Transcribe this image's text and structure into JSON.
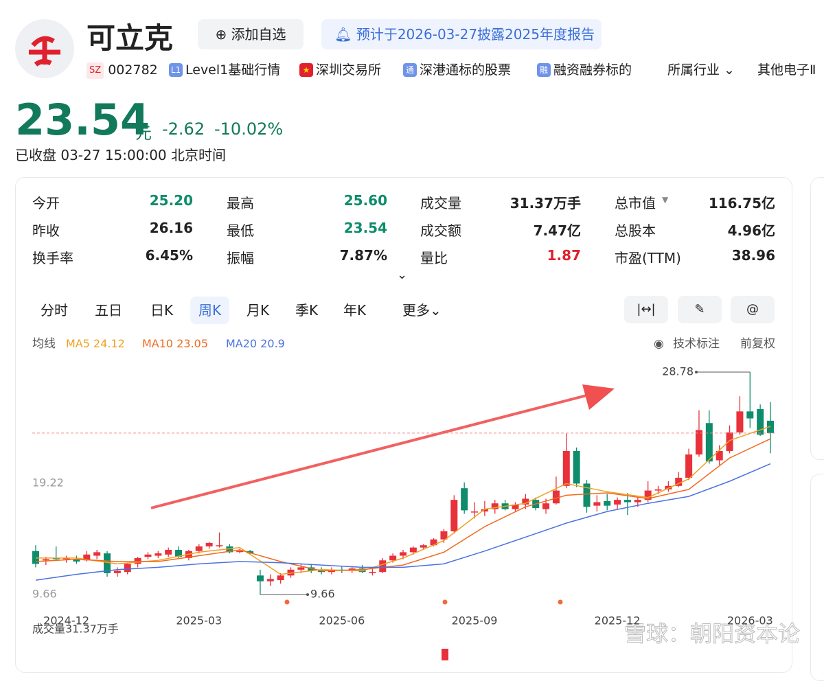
{
  "header": {
    "name": "可立克",
    "add_button": "添加自选",
    "notice": "预计于2026-03-27披露2025年度报告",
    "market": "SZ",
    "code": "002782",
    "tags": [
      {
        "badge": "L1",
        "text": "Level1基础行情"
      },
      {
        "text": "深圳交易所"
      },
      {
        "badge": "通",
        "text": "深港通标的股票"
      },
      {
        "badge": "融",
        "text": "融资融券标的"
      }
    ],
    "industry_label": "所属行业",
    "industry": "其他电子Ⅱ"
  },
  "quote": {
    "price": "23.54",
    "unit": "元",
    "change": "-2.62",
    "change_pct": "-10.02%",
    "status": "已收盘",
    "time": "03-27 15:00:00",
    "timezone": "北京时间"
  },
  "stats": [
    {
      "label": "今开",
      "value": "25.20",
      "color": "#0e8c6b"
    },
    {
      "label": "最高",
      "value": "25.60",
      "color": "#0e8c6b"
    },
    {
      "label": "成交量",
      "value": "31.37万手"
    },
    {
      "label": "总市值",
      "value": "116.75亿"
    },
    {
      "label": "昨收",
      "value": "26.16"
    },
    {
      "label": "最低",
      "value": "23.54",
      "color": "#0e8c6b"
    },
    {
      "label": "成交额",
      "value": "7.47亿"
    },
    {
      "label": "总股本",
      "value": "4.96亿"
    },
    {
      "label": "换手率",
      "value": "6.45%"
    },
    {
      "label": "振幅",
      "value": "7.87%"
    },
    {
      "label": "量比",
      "value": "1.87",
      "color": "#e0202e"
    },
    {
      "label": "市盈(TTM)",
      "value": "38.96"
    }
  ],
  "tabs": [
    "分时",
    "五日",
    "日K",
    "周K",
    "月K",
    "季K",
    "年K",
    "更多"
  ],
  "chart_data": {
    "type": "candlestick",
    "indicator_label": "均线",
    "tech_label": "技术标注",
    "adjust_label": "前复权",
    "volume_label": "成交量31.37万手",
    "up_color": "#e8313a",
    "down_color": "#0e8c6b",
    "price_line": true,
    "categories": [
      null,
      null,
      null,
      "2024-12",
      null,
      null,
      null,
      null,
      null,
      null,
      null,
      null,
      null,
      null,
      null,
      null,
      "2025-03",
      null,
      null,
      null,
      null,
      null,
      null,
      null,
      null,
      null,
      null,
      null,
      null,
      null,
      "2025-06",
      null,
      null,
      null,
      null,
      null,
      null,
      null,
      null,
      null,
      null,
      null,
      null,
      "2025-09",
      null,
      null,
      null,
      null,
      null,
      null,
      null,
      null,
      null,
      null,
      null,
      null,
      null,
      "2025-12",
      null,
      null,
      null,
      null,
      null,
      null,
      null,
      null,
      null,
      null,
      null,
      null,
      "2026-03",
      null,
      null
    ],
    "candles": [
      [
        13.4,
        13.9,
        12.0,
        12.3
      ],
      [
        12.6,
        12.9,
        12.2,
        12.7
      ],
      [
        12.8,
        13.8,
        12.6,
        12.7
      ],
      [
        12.7,
        13.0,
        12.4,
        12.8
      ],
      [
        12.7,
        13.0,
        12.3,
        12.5
      ],
      [
        12.6,
        13.4,
        12.5,
        13.1
      ],
      [
        13.0,
        13.5,
        12.7,
        13.3
      ],
      [
        13.2,
        13.4,
        11.2,
        11.5
      ],
      [
        11.5,
        12.0,
        11.2,
        11.7
      ],
      [
        11.6,
        12.4,
        11.4,
        12.3
      ],
      [
        12.3,
        12.9,
        12.0,
        12.8
      ],
      [
        12.9,
        13.3,
        12.7,
        13.1
      ],
      [
        13.0,
        13.4,
        12.8,
        13.2
      ],
      [
        13.1,
        13.7,
        12.9,
        13.5
      ],
      [
        13.5,
        13.8,
        12.8,
        12.9
      ],
      [
        12.8,
        13.5,
        12.6,
        13.4
      ],
      [
        13.4,
        14.0,
        13.2,
        13.8
      ],
      [
        13.8,
        14.2,
        13.6,
        14.1
      ],
      [
        13.9,
        15.0,
        13.7,
        13.9
      ],
      [
        13.8,
        14.0,
        13.2,
        13.3
      ],
      [
        13.4,
        13.6,
        13.2,
        13.4
      ],
      [
        13.4,
        13.5,
        13.1,
        13.2
      ],
      [
        11.3,
        11.8,
        9.66,
        10.8
      ],
      [
        10.8,
        11.4,
        10.4,
        11.0
      ],
      [
        10.9,
        11.5,
        10.6,
        11.3
      ],
      [
        11.3,
        12.0,
        11.1,
        11.8
      ],
      [
        11.8,
        12.3,
        11.5,
        12.0
      ],
      [
        12.0,
        12.3,
        11.5,
        11.7
      ],
      [
        11.7,
        12.0,
        11.4,
        11.6
      ],
      [
        11.6,
        12.0,
        11.4,
        11.8
      ],
      [
        11.8,
        12.1,
        11.5,
        11.7
      ],
      [
        11.7,
        12.0,
        11.5,
        11.9
      ],
      [
        11.9,
        12.2,
        11.5,
        11.6
      ],
      [
        11.5,
        11.9,
        11.3,
        11.6
      ],
      [
        11.6,
        12.8,
        11.5,
        12.6
      ],
      [
        12.6,
        13.2,
        12.4,
        13.0
      ],
      [
        13.0,
        13.5,
        12.7,
        13.3
      ],
      [
        13.3,
        13.8,
        13.1,
        13.7
      ],
      [
        13.7,
        14.0,
        13.5,
        13.9
      ],
      [
        13.9,
        14.5,
        13.8,
        14.4
      ],
      [
        14.4,
        15.3,
        14.1,
        15.1
      ],
      [
        15.1,
        18.2,
        14.9,
        17.8
      ],
      [
        18.8,
        19.3,
        16.6,
        16.9
      ],
      [
        16.8,
        17.6,
        16.2,
        16.8
      ],
      [
        16.8,
        17.7,
        16.4,
        17.0
      ],
      [
        17.0,
        17.8,
        16.6,
        17.5
      ],
      [
        17.5,
        17.8,
        16.9,
        17.0
      ],
      [
        17.0,
        17.6,
        16.8,
        17.4
      ],
      [
        17.4,
        18.3,
        17.0,
        17.9
      ],
      [
        17.8,
        18.0,
        16.9,
        17.1
      ],
      [
        17.0,
        17.9,
        16.6,
        17.5
      ],
      [
        17.5,
        19.8,
        17.4,
        18.6
      ],
      [
        19.0,
        23.5,
        18.8,
        22.0
      ],
      [
        22.0,
        22.3,
        18.9,
        19.2
      ],
      [
        19.2,
        19.5,
        16.7,
        17.2
      ],
      [
        17.3,
        18.2,
        16.8,
        17.6
      ],
      [
        17.7,
        18.3,
        16.9,
        17.3
      ],
      [
        17.4,
        18.0,
        17.0,
        17.8
      ],
      [
        17.8,
        18.4,
        16.5,
        17.6
      ],
      [
        17.6,
        18.0,
        17.2,
        17.8
      ],
      [
        17.8,
        19.4,
        17.6,
        18.6
      ],
      [
        18.6,
        19.0,
        18.3,
        18.7
      ],
      [
        18.7,
        19.4,
        18.5,
        19.0
      ],
      [
        19.0,
        20.2,
        18.9,
        19.7
      ],
      [
        19.7,
        22.2,
        19.5,
        21.7
      ],
      [
        21.7,
        25.5,
        21.5,
        23.8
      ],
      [
        24.4,
        25.5,
        20.9,
        21.1
      ],
      [
        21.2,
        22.5,
        20.8,
        22.0
      ],
      [
        22.0,
        24.2,
        21.8,
        23.6
      ],
      [
        23.6,
        26.7,
        23.4,
        25.4
      ],
      [
        25.4,
        28.78,
        24.0,
        24.8
      ],
      [
        25.6,
        26.0,
        23.3,
        23.4
      ],
      [
        24.6,
        26.2,
        21.8,
        23.54
      ]
    ],
    "series": [
      {
        "name": "MA5",
        "color": "#f0a020",
        "x": [
          0,
          4,
          8,
          12,
          16,
          20,
          24,
          28,
          32,
          36,
          40,
          44,
          48,
          52,
          56,
          60,
          64,
          68,
          72
        ],
        "values": [
          12.8,
          12.8,
          12.3,
          12.6,
          13.3,
          13.7,
          11.4,
          11.8,
          11.7,
          12.8,
          14.3,
          17.0,
          17.5,
          19.2,
          18.5,
          18.0,
          19.6,
          22.9,
          24.12
        ]
      },
      {
        "name": "MA10",
        "color": "#f06a1f",
        "x": [
          0,
          4,
          8,
          12,
          16,
          20,
          24,
          28,
          32,
          36,
          40,
          44,
          48,
          52,
          56,
          60,
          64,
          68,
          72
        ],
        "values": [
          12.5,
          12.7,
          12.5,
          12.5,
          13.0,
          13.5,
          12.5,
          11.7,
          11.8,
          12.2,
          13.3,
          15.5,
          17.2,
          18.2,
          18.4,
          17.9,
          18.7,
          21.4,
          23.05
        ]
      },
      {
        "name": "MA20",
        "color": "#4a72e0",
        "x": [
          0,
          4,
          8,
          12,
          16,
          20,
          24,
          28,
          32,
          36,
          40,
          44,
          48,
          52,
          56,
          60,
          64,
          68,
          72
        ],
        "values": [
          10.9,
          11.4,
          11.8,
          12.0,
          12.3,
          12.5,
          12.4,
          12.2,
          12.0,
          12.0,
          12.3,
          13.4,
          14.6,
          15.8,
          16.8,
          17.5,
          18.1,
          19.4,
          20.9
        ]
      }
    ],
    "ylim": [
      8.84,
      29.49
    ],
    "yticks": [
      19.22,
      9.66
    ]
  },
  "watermark": "雪球：朝阳资本论"
}
